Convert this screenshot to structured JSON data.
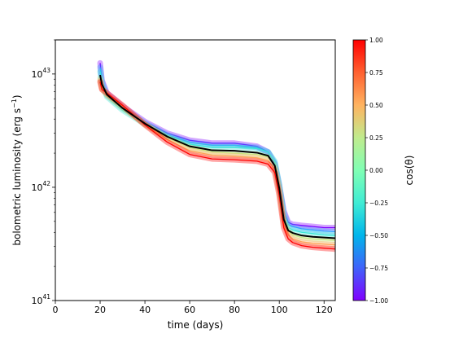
{
  "chart_data": {
    "type": "line",
    "title": "",
    "xlabel": "time (days)",
    "ylabel": "bolometric luminosity (erg s",
    "ylabel_unit_sup": "−1",
    "ylabel_close": ")",
    "xlim": [
      0,
      125
    ],
    "ylim": [
      1e+41,
      2e+43
    ],
    "yscale": "log",
    "x_ticks": [
      0,
      20,
      40,
      60,
      80,
      100,
      120
    ],
    "x_tick_labels": [
      "0",
      "20",
      "40",
      "60",
      "80",
      "100",
      "120"
    ],
    "y_ticks": [
      1e+41,
      1e+42,
      1e+43
    ],
    "y_tick_labels": [
      {
        "base": "10",
        "exp": "41"
      },
      {
        "base": "10",
        "exp": "42"
      },
      {
        "base": "10",
        "exp": "43"
      }
    ],
    "grid": false,
    "colormap": "rainbow",
    "colorbar": {
      "label": "cos(θ)",
      "range": [
        -1.0,
        1.0
      ],
      "ticks": [
        1.0,
        0.75,
        0.5,
        0.25,
        0.0,
        -0.25,
        -0.5,
        -0.75,
        -1.0
      ],
      "tick_labels": [
        "1.00",
        "0.75",
        "0.50",
        "0.25",
        "0.00",
        "−0.25",
        "−0.50",
        "−0.75",
        "−1.00"
      ]
    },
    "series": [
      {
        "cos_theta": -1.0,
        "color": "#8000ff",
        "x": [
          20,
          20.8,
          23,
          30,
          40,
          50,
          60,
          70,
          80,
          90,
          95,
          98,
          100,
          102,
          104,
          106,
          110,
          115,
          120,
          125
        ],
        "y": [
          1.25e+43,
          8.8e+42,
          6.8e+42,
          5.2e+42,
          3.8e+42,
          3e+42,
          2.6e+42,
          2.45e+42,
          2.45e+42,
          2.3e+42,
          2.05e+42,
          1.6e+42,
          1.05e+42,
          6.2e+41,
          4.9e+41,
          4.7e+41,
          4.6e+41,
          4.5e+41,
          4.4e+41,
          4.4e+41
        ]
      },
      {
        "cos_theta": -0.6,
        "color": "#2fa0ff",
        "x": [
          20,
          20.8,
          23,
          30,
          40,
          50,
          60,
          70,
          80,
          90,
          95,
          98,
          100,
          102,
          104,
          106,
          110,
          115,
          120,
          125
        ],
        "y": [
          1.15e+43,
          8.6e+42,
          6.5e+42,
          5e+42,
          3.7e+42,
          2.9e+42,
          2.5e+42,
          2.35e+42,
          2.35e+42,
          2.25e+42,
          2.05e+42,
          1.65e+42,
          1.05e+42,
          6e+41,
          4.7e+41,
          4.5e+41,
          4.3e+41,
          4.2e+41,
          4.1e+41,
          4.05e+41
        ]
      },
      {
        "cos_theta": -0.2,
        "color": "#3ae6d6",
        "x": [
          20,
          20.8,
          23,
          30,
          40,
          50,
          60,
          70,
          80,
          90,
          95,
          98,
          100,
          102,
          104,
          106,
          110,
          115,
          120,
          125
        ],
        "y": [
          1.05e+43,
          8.2e+42,
          6.3e+42,
          4.8e+42,
          3.6e+42,
          2.85e+42,
          2.4e+42,
          2.25e+42,
          2.25e+42,
          2.2e+42,
          2.05e+42,
          1.7e+42,
          1.05e+42,
          5.6e+41,
          4.4e+41,
          4.2e+41,
          4e+41,
          3.9e+41,
          3.8e+41,
          3.75e+41
        ]
      },
      {
        "cos_theta": 0.25,
        "color": "#c6e680",
        "x": [
          20,
          20.8,
          23,
          30,
          40,
          50,
          60,
          70,
          80,
          90,
          95,
          98,
          100,
          102,
          104,
          106,
          110,
          115,
          120,
          125
        ],
        "y": [
          9.2e+42,
          7.6e+42,
          6.5e+42,
          5e+42,
          3.6e+42,
          2.75e+42,
          2.25e+42,
          2.05e+42,
          2e+42,
          1.95e+42,
          1.85e+42,
          1.55e+42,
          9.8e+41,
          5.2e+41,
          4.1e+41,
          3.8e+41,
          3.6e+41,
          3.5e+41,
          3.45e+41,
          3.4e+41
        ]
      },
      {
        "cos_theta": 0.6,
        "color": "#ffa256",
        "x": [
          20,
          20.8,
          23,
          30,
          40,
          50,
          60,
          70,
          80,
          90,
          95,
          98,
          100,
          102,
          104,
          106,
          110,
          115,
          120,
          125
        ],
        "y": [
          8.8e+42,
          7.4e+42,
          6.6e+42,
          5.2e+42,
          3.6e+42,
          2.65e+42,
          2.1e+42,
          1.92e+42,
          1.88e+42,
          1.82e+42,
          1.72e+42,
          1.45e+42,
          9.2e+41,
          4.8e+41,
          3.8e+41,
          3.5e+41,
          3.3e+41,
          3.2e+41,
          3.15e+41,
          3.1e+41
        ]
      },
      {
        "cos_theta": 1.0,
        "color": "#ff0000",
        "x": [
          20,
          20.8,
          23,
          30,
          40,
          50,
          60,
          70,
          80,
          90,
          95,
          98,
          100,
          102,
          104,
          106,
          110,
          115,
          120,
          125
        ],
        "y": [
          8.5e+42,
          7.3e+42,
          6.8e+42,
          5.3e+42,
          3.55e+42,
          2.5e+42,
          1.95e+42,
          1.78e+42,
          1.75e+42,
          1.7e+42,
          1.6e+42,
          1.35e+42,
          8.5e+41,
          4.4e+41,
          3.5e+41,
          3.25e+41,
          3.05e+41,
          2.95e+41,
          2.9e+41,
          2.85e+41
        ]
      },
      {
        "cos_theta": null,
        "color": "#000000",
        "x": [
          20,
          20.8,
          23,
          30,
          40,
          50,
          60,
          70,
          80,
          90,
          95,
          98,
          100,
          102,
          104,
          106,
          110,
          115,
          120,
          125
        ],
        "y": [
          9.8e+42,
          8.1e+42,
          6.6e+42,
          5e+42,
          3.65e+42,
          2.8e+42,
          2.3e+42,
          2.12e+42,
          2.1e+42,
          2.02e+42,
          1.9e+42,
          1.55e+42,
          9.8e+41,
          5.2e+41,
          4.15e+41,
          3.95e+41,
          3.75e+41,
          3.65e+41,
          3.6e+41,
          3.55e+41
        ]
      }
    ]
  }
}
